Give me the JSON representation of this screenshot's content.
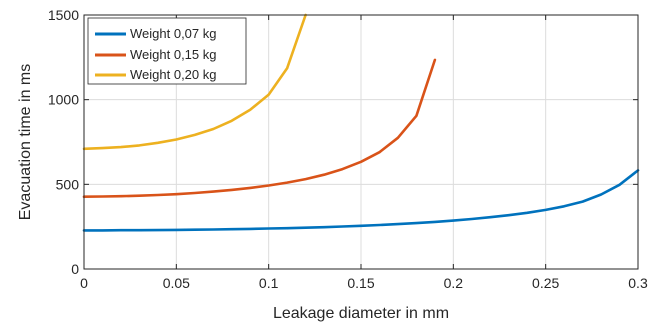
{
  "chart_data": {
    "type": "line",
    "xlabel": "Leakage diameter in mm",
    "ylabel": "Evacuation time in ms",
    "xlim": [
      0,
      0.3
    ],
    "ylim": [
      0,
      1500
    ],
    "xticks": [
      0,
      0.05,
      0.1,
      0.15,
      0.2,
      0.25,
      0.3
    ],
    "xtick_labels": [
      "0",
      "0.05",
      "0.1",
      "0.15",
      "0.2",
      "0.25",
      "0.3"
    ],
    "yticks": [
      0,
      500,
      1000,
      1500
    ],
    "ytick_labels": [
      "0",
      "500",
      "1000",
      "1500"
    ],
    "grid": true,
    "legend_position": "top-left",
    "series": [
      {
        "name": "Weight 0,07 kg",
        "color": "#0072BD",
        "x": [
          0,
          0.01,
          0.02,
          0.03,
          0.04,
          0.05,
          0.06,
          0.07,
          0.08,
          0.09,
          0.1,
          0.11,
          0.12,
          0.13,
          0.14,
          0.15,
          0.16,
          0.17,
          0.18,
          0.19,
          0.2,
          0.21,
          0.22,
          0.23,
          0.24,
          0.25,
          0.26,
          0.27,
          0.28,
          0.29,
          0.3
        ],
        "y": [
          228,
          228,
          229,
          229,
          230,
          231,
          232,
          233,
          235,
          237,
          239,
          241,
          244,
          247,
          251,
          255,
          260,
          265,
          271,
          278,
          286,
          295,
          306,
          318,
          332,
          349,
          370,
          398,
          440,
          497,
          582
        ]
      },
      {
        "name": "Weight 0,15 kg",
        "color": "#D95319",
        "x": [
          0,
          0.01,
          0.02,
          0.03,
          0.04,
          0.05,
          0.06,
          0.07,
          0.08,
          0.09,
          0.1,
          0.11,
          0.12,
          0.13,
          0.14,
          0.15,
          0.16,
          0.17,
          0.18,
          0.19
        ],
        "y": [
          427,
          428,
          430,
          433,
          437,
          442,
          449,
          457,
          467,
          479,
          493,
          510,
          531,
          557,
          590,
          633,
          690,
          775,
          905,
          1235
        ]
      },
      {
        "name": "Weight 0,20 kg",
        "color": "#EDB120",
        "x": [
          0,
          0.01,
          0.02,
          0.03,
          0.04,
          0.05,
          0.06,
          0.07,
          0.08,
          0.09,
          0.1,
          0.11,
          0.12
        ],
        "y": [
          710,
          714,
          720,
          730,
          745,
          765,
          792,
          827,
          875,
          940,
          1030,
          1185,
          1500
        ]
      }
    ]
  }
}
